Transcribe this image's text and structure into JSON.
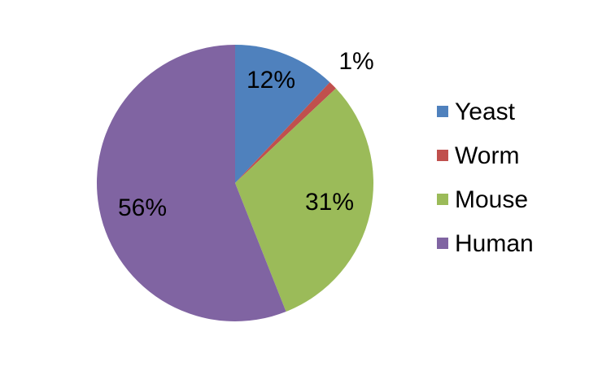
{
  "chart_data": {
    "type": "pie",
    "title": "",
    "categories": [
      "Yeast",
      "Worm",
      "Mouse",
      "Human"
    ],
    "values": [
      12,
      1,
      31,
      56
    ],
    "labels": [
      "12%",
      "1%",
      "31%",
      "56%"
    ],
    "colors": [
      "#4F81BD",
      "#C0504D",
      "#9BBB59",
      "#8064A2"
    ],
    "legend": {
      "placement": "right",
      "entries": [
        "Yeast",
        "Worm",
        "Mouse",
        "Human"
      ]
    }
  }
}
